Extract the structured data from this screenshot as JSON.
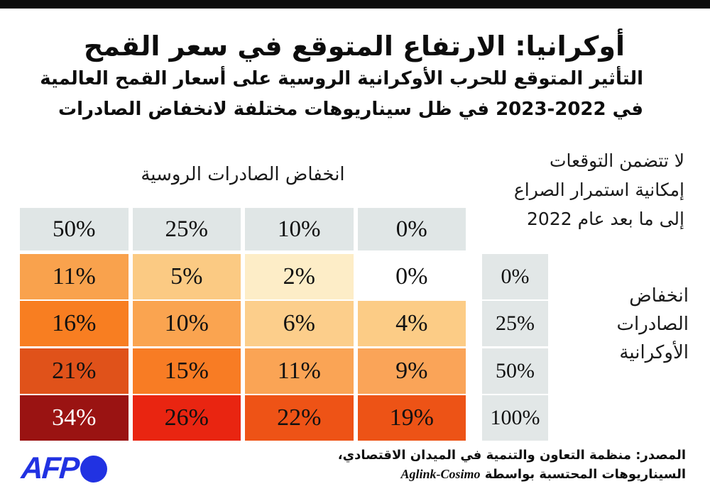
{
  "header": {
    "title": "أوكرانيا: الارتفاع المتوقع في سعر القمح",
    "subtitle_lines": [
      "التأثير المتوقع للحرب الأوكرانية الروسية على أسعار القمح العالمية",
      "في 2022-2023 في ظل سيناريوهات مختلفة لانخفاض الصادرات"
    ]
  },
  "note_lines": [
    "لا تتضمن التوقعات",
    "إمكانية استمرار الصراع",
    "إلى ما بعد عام 2022"
  ],
  "chart_data": {
    "type": "heatmap",
    "title": "أوكرانيا: الارتفاع المتوقع في سعر القمح",
    "columns_label": "انخفاض الصادرات الروسية",
    "columns": [
      "50%",
      "25%",
      "10%",
      "0%"
    ],
    "rows_label": "انخفاض الصادرات الأوكرانية",
    "rows_label_lines": [
      "انخفاض",
      "الصادرات",
      "الأوكرانية"
    ],
    "rows": [
      "0%",
      "25%",
      "50%",
      "100%"
    ],
    "values": [
      [
        11,
        5,
        2,
        0
      ],
      [
        16,
        10,
        6,
        4
      ],
      [
        21,
        15,
        11,
        9
      ],
      [
        34,
        26,
        22,
        19
      ]
    ],
    "cell_labels": [
      [
        "11%",
        "5%",
        "2%",
        "0%"
      ],
      [
        "16%",
        "10%",
        "6%",
        "4%"
      ],
      [
        "21%",
        "15%",
        "11%",
        "9%"
      ],
      [
        "34%",
        "26%",
        "22%",
        "19%"
      ]
    ],
    "cell_colors": [
      [
        "#F9A24D",
        "#FBCA83",
        "#FDEDC7",
        "#FFFFFF"
      ],
      [
        "#F87E21",
        "#FAA450",
        "#FCCE8B",
        "#FCCC86"
      ],
      [
        "#E0521A",
        "#F87C24",
        "#FAA455",
        "#FAA458"
      ],
      [
        "#9A1312",
        "#E92511",
        "#EE5316",
        "#ED5316"
      ],
      [
        "#E0E6E6",
        "#E2E7E7"
      ]
    ],
    "header_bg": "#E0E6E6",
    "side_bg": "#E2E7E7",
    "legend_position": "none",
    "grid": false
  },
  "footer": {
    "source_line1": "المصدر: منظمة التعاون والتنمية في الميدان الاقتصادي،",
    "source_line2_prefix": "السيناريوهات المحتسبة بواسطة",
    "source_model": "Aglink-Cosimo",
    "brand": "AFP",
    "brand_color": "#2132E2"
  }
}
